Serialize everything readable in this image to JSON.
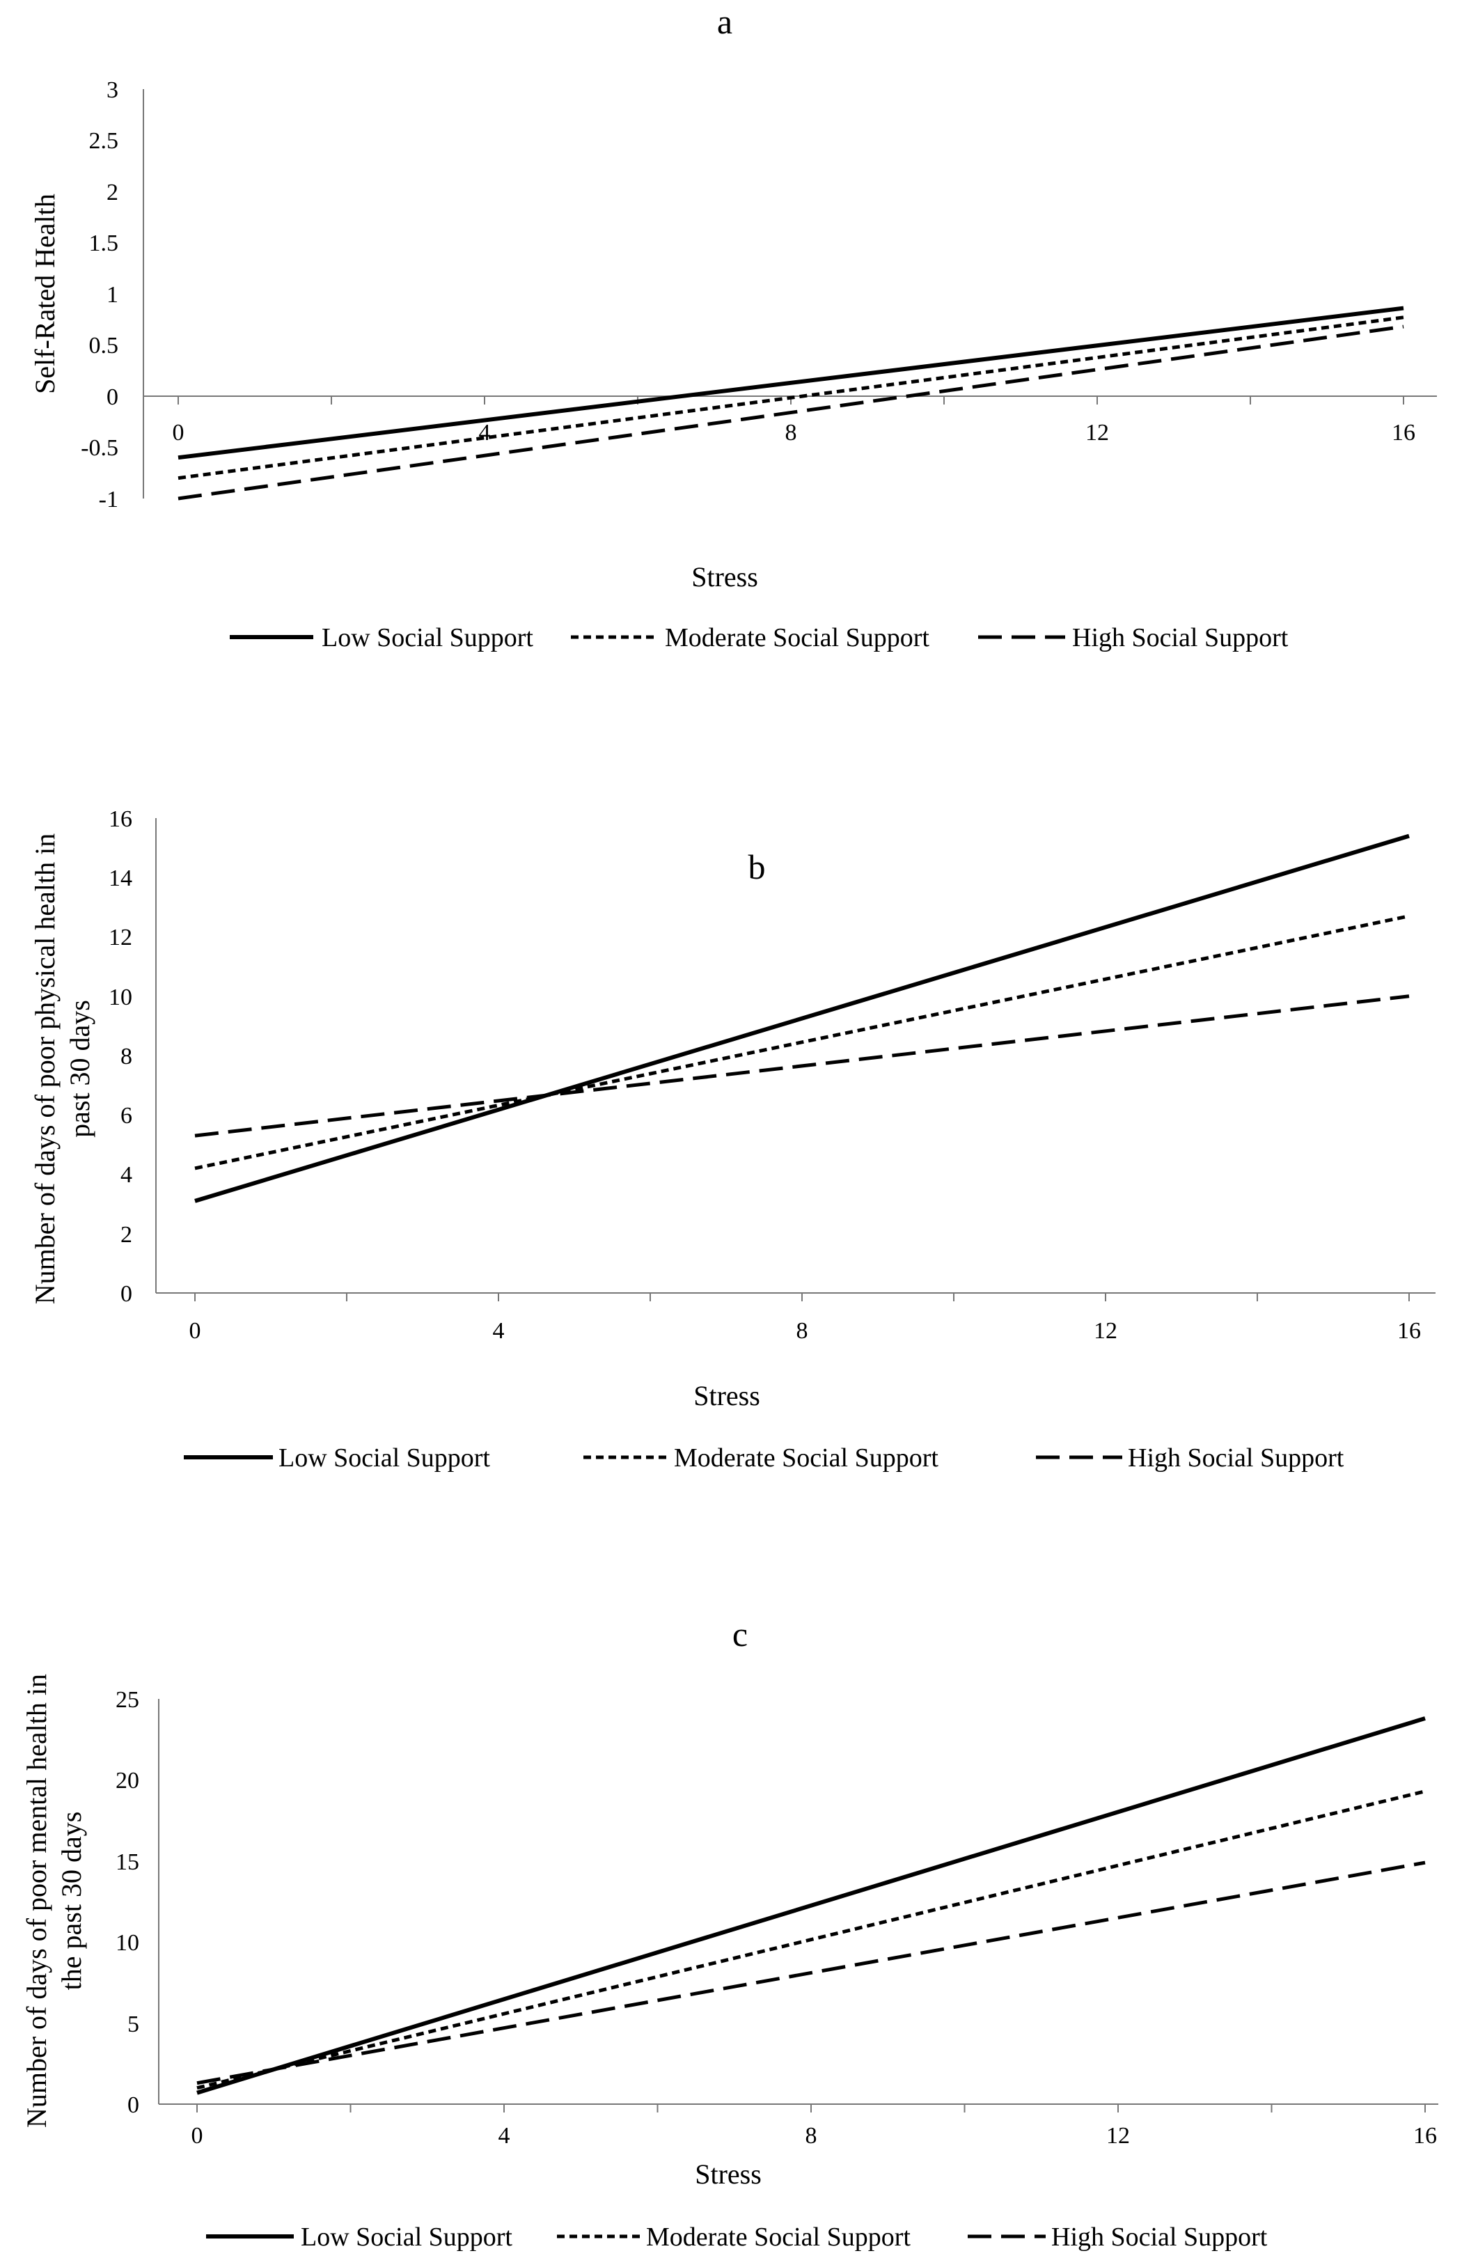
{
  "figure": {
    "description_free": true
  },
  "chart_data": [
    {
      "type": "line",
      "title": "a",
      "xlabel": "Stress",
      "ylabel": "Self-Rated Health",
      "xlim": [
        0,
        16
      ],
      "ylim": [
        -1,
        3
      ],
      "xticks": [
        0,
        4,
        8,
        12,
        16
      ],
      "yticks": [
        -1,
        -0.5,
        0,
        0.5,
        1,
        1.5,
        2,
        2.5,
        3
      ],
      "ytick_labels": [
        "-1",
        "-0.5",
        "0",
        "0.5",
        "1",
        "1.5",
        "2",
        "2.5",
        "3"
      ],
      "x": [
        0,
        16
      ],
      "series": [
        {
          "name": "Low Social Support",
          "style": "solid",
          "values": [
            -0.6,
            0.86
          ]
        },
        {
          "name": "Moderate Social Support",
          "style": "dotted",
          "values": [
            -0.8,
            0.77
          ]
        },
        {
          "name": "High Social Support",
          "style": "dashed",
          "values": [
            -1.0,
            0.68
          ]
        }
      ],
      "legend": "bottom"
    },
    {
      "type": "line",
      "title": "b",
      "xlabel": "Stress",
      "ylabel": "Number of days of poor physical health in past 30 days",
      "ylabel_lines": [
        "Number of days of poor physical health in",
        "past 30 days"
      ],
      "xlim": [
        0,
        16
      ],
      "ylim": [
        0,
        16
      ],
      "xticks": [
        0,
        4,
        8,
        12,
        16
      ],
      "yticks": [
        0,
        2,
        4,
        6,
        8,
        10,
        12,
        14,
        16
      ],
      "ytick_labels": [
        "0",
        "2",
        "4",
        "6",
        "8",
        "10",
        "12",
        "14",
        "16"
      ],
      "x": [
        0,
        16
      ],
      "series": [
        {
          "name": "Low Social Support",
          "style": "solid",
          "values": [
            3.1,
            15.4
          ]
        },
        {
          "name": "Moderate Social Support",
          "style": "dotted",
          "values": [
            4.2,
            12.7
          ]
        },
        {
          "name": "High Social Support",
          "style": "dashed",
          "values": [
            5.3,
            10.0
          ]
        }
      ],
      "legend": "bottom"
    },
    {
      "type": "line",
      "title": "c",
      "xlabel": "Stress",
      "ylabel": "Number of days of poor mental health in the past 30 days",
      "ylabel_lines": [
        "Number of days of poor mental health in",
        "the past 30 days"
      ],
      "xlim": [
        0,
        16
      ],
      "ylim": [
        0,
        25
      ],
      "xticks": [
        0,
        4,
        8,
        12,
        16
      ],
      "yticks": [
        0,
        5,
        10,
        15,
        20,
        25
      ],
      "ytick_labels": [
        "0",
        "5",
        "10",
        "15",
        "20",
        "25"
      ],
      "x": [
        0,
        16
      ],
      "series": [
        {
          "name": "Low Social Support",
          "style": "solid",
          "values": [
            0.7,
            23.8
          ]
        },
        {
          "name": "Moderate Social Support",
          "style": "dotted",
          "values": [
            1.0,
            19.3
          ]
        },
        {
          "name": "High Social Support",
          "style": "dashed",
          "values": [
            1.3,
            14.9
          ]
        }
      ],
      "legend": "bottom"
    }
  ]
}
